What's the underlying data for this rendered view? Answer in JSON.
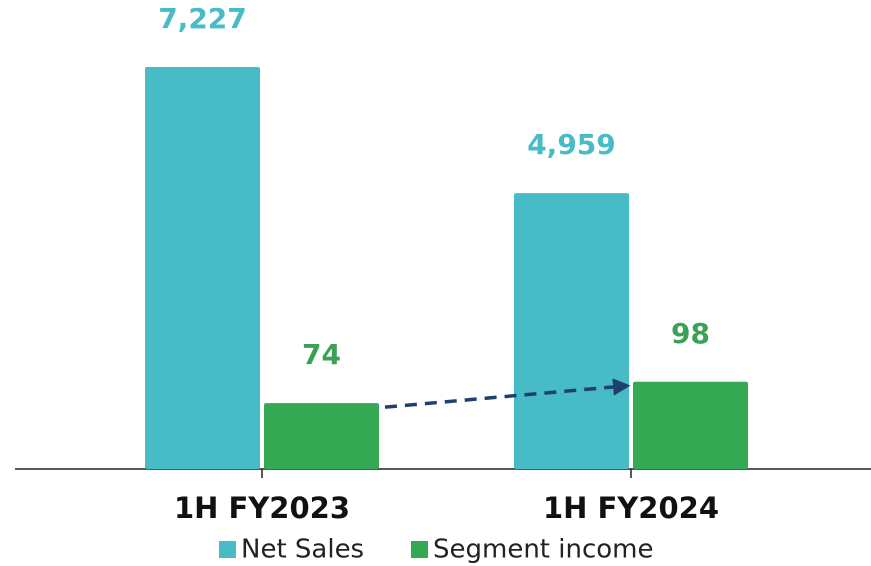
{
  "chart_data": {
    "type": "bar",
    "categories": [
      "1H FY2023",
      "1H FY2024"
    ],
    "series": [
      {
        "name": "Net Sales",
        "color": "#47bcc7",
        "values": [
          7227,
          4959
        ],
        "value_labels": [
          "7,227",
          "4,959"
        ]
      },
      {
        "name": "Segment income",
        "color": "#35a853",
        "axis": "y2",
        "values": [
          74,
          98
        ]
      }
    ],
    "ylim": [
      0,
      8000
    ],
    "y2lim": [
      0,
      500
    ]
  }
}
